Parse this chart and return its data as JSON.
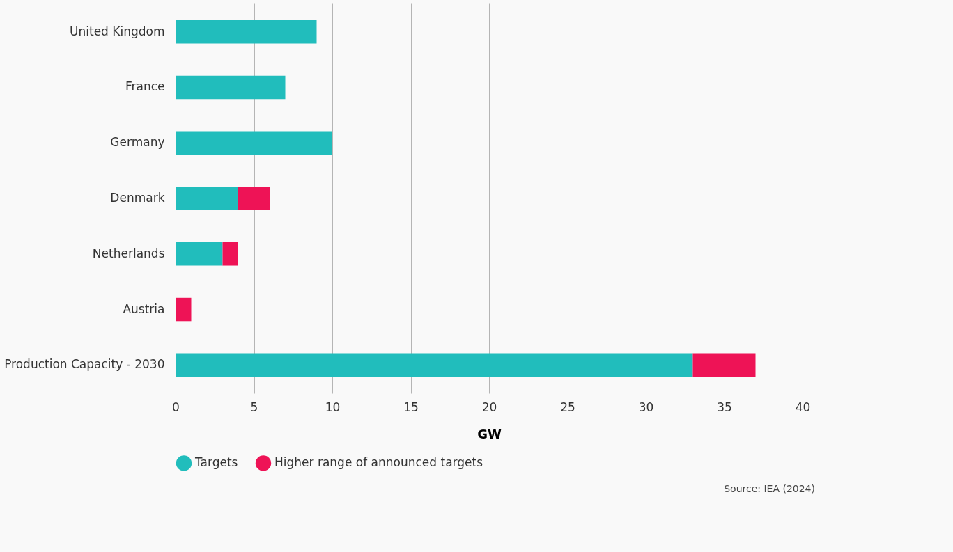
{
  "chart_data": {
    "type": "bar",
    "orientation": "horizontal",
    "stacked": true,
    "categories": [
      "United Kingdom",
      "France",
      "Germany",
      "Denmark",
      "Netherlands",
      "Austria",
      "Production Capacity - 2030"
    ],
    "series": [
      {
        "name": "Targets",
        "color": "#21bdbc",
        "values": [
          9,
          7,
          10,
          4,
          3,
          null,
          33
        ]
      },
      {
        "name": "Higher range of announced targets",
        "color": "#ee1356",
        "values": [
          null,
          null,
          null,
          2,
          1,
          1,
          4
        ]
      }
    ],
    "xlabel": "GW",
    "xlim": [
      0,
      40
    ],
    "xticks": [
      0,
      5,
      10,
      15,
      20,
      25,
      30,
      35,
      40
    ],
    "grid": "x",
    "legend": "bottom",
    "annotations": [
      "Source: IEA (2024)"
    ]
  }
}
